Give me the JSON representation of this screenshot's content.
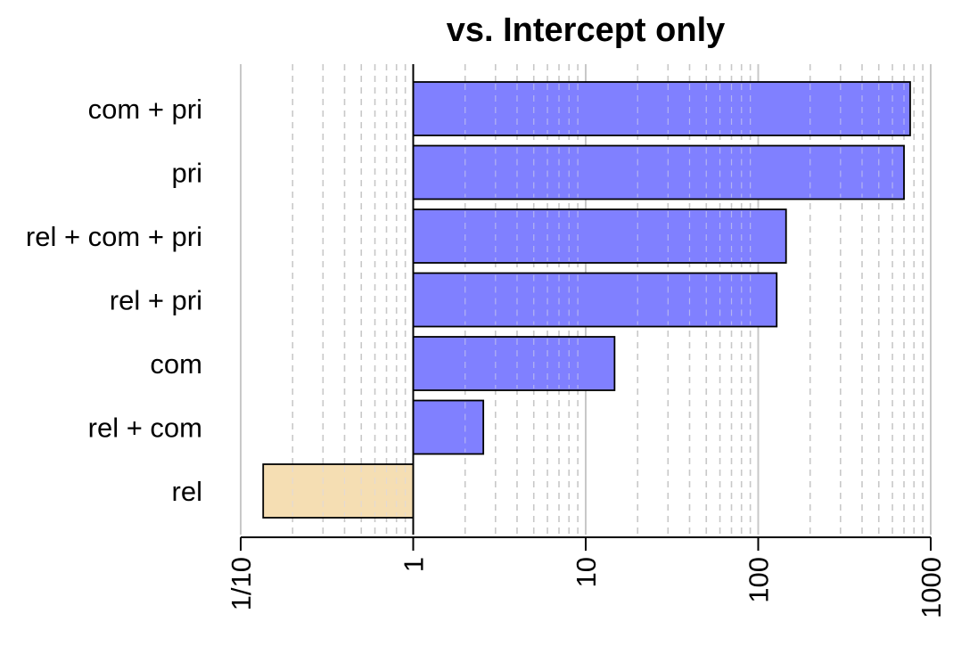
{
  "chart_data": {
    "type": "bar",
    "orientation": "horizontal",
    "title": "vs. Intercept only",
    "xlabel": "",
    "ylabel": "",
    "x_scale": "log",
    "xlim": [
      0.1,
      1000
    ],
    "baseline": 1,
    "grid": true,
    "legend": "none",
    "x_ticks": [
      {
        "value": 0.1,
        "label": "1/10"
      },
      {
        "value": 1,
        "label": "1"
      },
      {
        "value": 10,
        "label": "10"
      },
      {
        "value": 100,
        "label": "100"
      },
      {
        "value": 1000,
        "label": "1000"
      }
    ],
    "categories": [
      "com + pri",
      "pri",
      "rel + com + pri",
      "rel + pri",
      "com",
      "rel + com",
      "rel"
    ],
    "values": [
      760,
      700,
      145,
      128,
      14.7,
      2.55,
      0.135
    ],
    "colors": {
      "above_one": "#8080ff",
      "below_one": "#f5deb3",
      "bar_stroke": "#000000",
      "major_grid": "#c8c8c8",
      "minor_grid": "#c8c8c8"
    }
  }
}
